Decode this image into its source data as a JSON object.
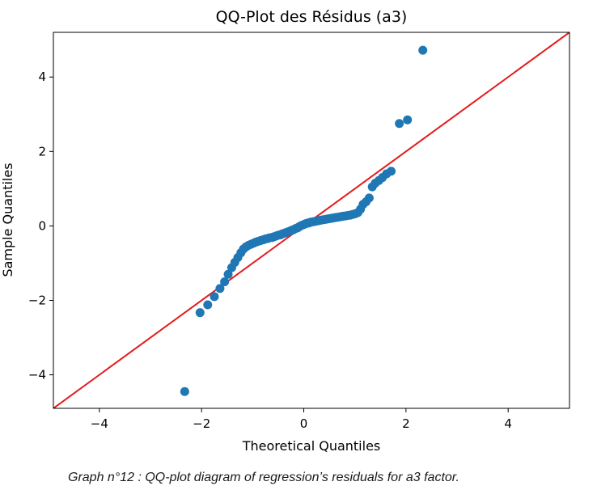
{
  "chart_data": {
    "type": "scatter",
    "title": "QQ-Plot des Résidus (a3)",
    "xlabel": "Theoretical Quantiles",
    "ylabel": "Sample Quantiles",
    "xlim": [
      -4.9,
      5.2
    ],
    "ylim": [
      -4.9,
      5.2
    ],
    "xticks": [
      -4,
      -2,
      0,
      2,
      4
    ],
    "yticks": [
      -4,
      -2,
      0,
      2,
      4
    ],
    "xtick_labels": [
      "−4",
      "−2",
      "0",
      "2",
      "4"
    ],
    "ytick_labels": [
      "−4",
      "−2",
      "0",
      "2",
      "4"
    ],
    "grid": false,
    "point_color": "#1f77b4",
    "line_color": "#e41a1c",
    "reference_line": {
      "type": "45-degree",
      "slope": 1,
      "intercept": 0
    },
    "points": [
      [
        -2.33,
        -4.45
      ],
      [
        -2.03,
        -2.33
      ],
      [
        -1.88,
        -2.12
      ],
      [
        -1.75,
        -1.9
      ],
      [
        -1.64,
        -1.68
      ],
      [
        -1.55,
        -1.5
      ],
      [
        -1.48,
        -1.3
      ],
      [
        -1.41,
        -1.12
      ],
      [
        -1.35,
        -0.98
      ],
      [
        -1.29,
        -0.85
      ],
      [
        -1.23,
        -0.72
      ],
      [
        -1.18,
        -0.62
      ],
      [
        -1.13,
        -0.56
      ],
      [
        -1.08,
        -0.52
      ],
      [
        -1.03,
        -0.49
      ],
      [
        -0.98,
        -0.46
      ],
      [
        -0.93,
        -0.43
      ],
      [
        -0.88,
        -0.41
      ],
      [
        -0.84,
        -0.39
      ],
      [
        -0.79,
        -0.37
      ],
      [
        -0.75,
        -0.35
      ],
      [
        -0.71,
        -0.34
      ],
      [
        -0.67,
        -0.32
      ],
      [
        -0.62,
        -0.31
      ],
      [
        -0.58,
        -0.29
      ],
      [
        -0.54,
        -0.27
      ],
      [
        -0.5,
        -0.25
      ],
      [
        -0.46,
        -0.24
      ],
      [
        -0.43,
        -0.22
      ],
      [
        -0.39,
        -0.2
      ],
      [
        -0.35,
        -0.18
      ],
      [
        -0.31,
        -0.16
      ],
      [
        -0.27,
        -0.14
      ],
      [
        -0.24,
        -0.12
      ],
      [
        -0.2,
        -0.1
      ],
      [
        -0.16,
        -0.07
      ],
      [
        -0.12,
        -0.05
      ],
      [
        -0.09,
        -0.02
      ],
      [
        -0.05,
        0.01
      ],
      [
        -0.01,
        0.03
      ],
      [
        0.02,
        0.05
      ],
      [
        0.06,
        0.07
      ],
      [
        0.1,
        0.08
      ],
      [
        0.13,
        0.1
      ],
      [
        0.17,
        0.11
      ],
      [
        0.21,
        0.12
      ],
      [
        0.25,
        0.13
      ],
      [
        0.28,
        0.14
      ],
      [
        0.32,
        0.15
      ],
      [
        0.36,
        0.16
      ],
      [
        0.4,
        0.17
      ],
      [
        0.44,
        0.18
      ],
      [
        0.48,
        0.19
      ],
      [
        0.52,
        0.2
      ],
      [
        0.56,
        0.21
      ],
      [
        0.6,
        0.22
      ],
      [
        0.64,
        0.23
      ],
      [
        0.69,
        0.24
      ],
      [
        0.73,
        0.25
      ],
      [
        0.77,
        0.26
      ],
      [
        0.82,
        0.27
      ],
      [
        0.86,
        0.28
      ],
      [
        0.91,
        0.29
      ],
      [
        0.96,
        0.31
      ],
      [
        1.01,
        0.33
      ],
      [
        1.06,
        0.36
      ],
      [
        1.11,
        0.45
      ],
      [
        1.16,
        0.58
      ],
      [
        1.22,
        0.65
      ],
      [
        1.28,
        0.75
      ],
      [
        1.34,
        1.05
      ],
      [
        1.4,
        1.15
      ],
      [
        1.47,
        1.22
      ],
      [
        1.54,
        1.3
      ],
      [
        1.62,
        1.4
      ],
      [
        1.71,
        1.47
      ],
      [
        1.87,
        2.75
      ],
      [
        2.03,
        2.85
      ],
      [
        2.33,
        4.72
      ]
    ]
  },
  "caption": "Graph n°12 : QQ-plot diagram of regression’s residuals for a3 factor."
}
